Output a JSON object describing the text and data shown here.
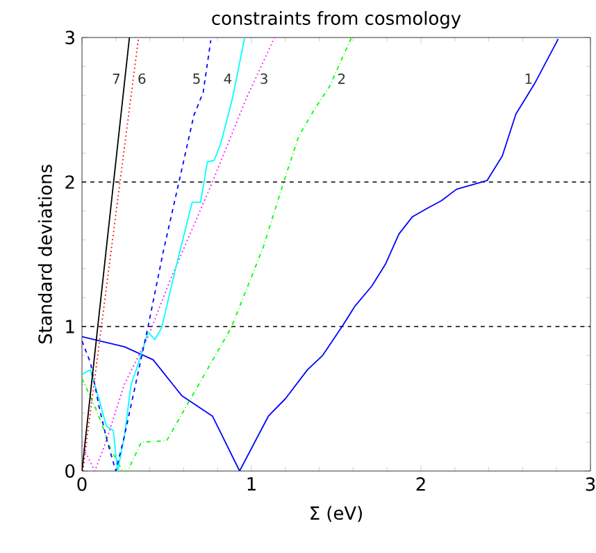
{
  "chart_data": {
    "type": "line",
    "title": "constraints from cosmology",
    "xlabel": "Σ (eV)",
    "ylabel": "Standard deviations",
    "xlim": [
      0,
      3
    ],
    "ylim": [
      0,
      3
    ],
    "xticks": [
      0,
      1,
      2,
      3
    ],
    "yticks": [
      0,
      1,
      2,
      3
    ],
    "grid": false,
    "legend": false,
    "marker": "none",
    "ref_lines": [
      {
        "axis": "y",
        "value": 1,
        "color": "#000000",
        "line_style": "dashed"
      },
      {
        "axis": "y",
        "value": 2,
        "color": "#000000",
        "line_style": "dashed"
      }
    ],
    "series": [
      {
        "name": "1",
        "color": "#0000ff",
        "line_style": "solid",
        "x": [
          0,
          0.25,
          0.42,
          0.59,
          0.77,
          0.93,
          1.1,
          1.2,
          1.33,
          1.42,
          1.54,
          1.61,
          1.71,
          1.79,
          1.87,
          1.95,
          2.04,
          2.12,
          2.21,
          2.39,
          2.48,
          2.56,
          2.67,
          2.81
        ],
        "values": [
          0.93,
          0.86,
          0.77,
          0.52,
          0.38,
          0,
          0.38,
          0.5,
          0.7,
          0.8,
          1.01,
          1.14,
          1.28,
          1.43,
          1.64,
          1.76,
          1.82,
          1.87,
          1.95,
          2.01,
          2.18,
          2.47,
          2.68,
          2.99
        ]
      },
      {
        "name": "2",
        "color": "#00ff00",
        "line_style": "dashdot",
        "x": [
          0,
          0.09,
          0.17,
          0.24,
          0.27,
          0.35,
          0.5,
          0.66,
          0.88,
          1.07,
          1.19,
          1.28,
          1.37,
          1.46,
          1.59
        ],
        "values": [
          0.64,
          0.41,
          0.15,
          0,
          0,
          0.2,
          0.21,
          0.54,
          0.99,
          1.55,
          2.0,
          2.32,
          2.5,
          2.66,
          3.0
        ]
      },
      {
        "name": "3",
        "color": "#ff00ff",
        "line_style": "dotted",
        "x": [
          0,
          0.076,
          0.144,
          0.25,
          0.39,
          0.52,
          0.77,
          0.97,
          1.136
        ],
        "values": [
          0.18,
          0,
          0.21,
          0.6,
          0.93,
          1.32,
          2.0,
          2.58,
          3.0
        ]
      },
      {
        "name": "4",
        "color": "#00ffff",
        "line_style": "solid",
        "x": [
          0,
          0.05,
          0.1,
          0.144,
          0.185,
          0.21,
          0.25,
          0.29,
          0.334,
          0.39,
          0.43,
          0.47,
          0.55,
          0.65,
          0.7,
          0.74,
          0.78,
          0.82,
          0.89,
          0.96
        ],
        "values": [
          0.67,
          0.7,
          0.5,
          0.31,
          0.28,
          0,
          0.24,
          0.6,
          0.75,
          0.96,
          0.91,
          0.99,
          1.39,
          1.86,
          1.86,
          2.14,
          2.15,
          2.27,
          2.59,
          3.0
        ]
      },
      {
        "name": "5",
        "color": "#0000ff",
        "line_style": "dashed",
        "x": [
          0,
          0.05,
          0.1,
          0.15,
          0.2,
          0.25,
          0.39,
          0.48,
          0.58,
          0.66,
          0.715,
          0.76
        ],
        "values": [
          0.9,
          0.75,
          0.45,
          0.2,
          0,
          0.24,
          1.0,
          1.52,
          2.04,
          2.46,
          2.62,
          2.98
        ]
      },
      {
        "name": "6",
        "color": "#ff0000",
        "line_style": "dotted",
        "x": [
          0.005,
          0.334
        ],
        "values": [
          0,
          3
        ]
      },
      {
        "name": "7",
        "color": "#000000",
        "line_style": "solid",
        "x": [
          0,
          0.28
        ],
        "values": [
          0,
          3
        ]
      }
    ]
  }
}
